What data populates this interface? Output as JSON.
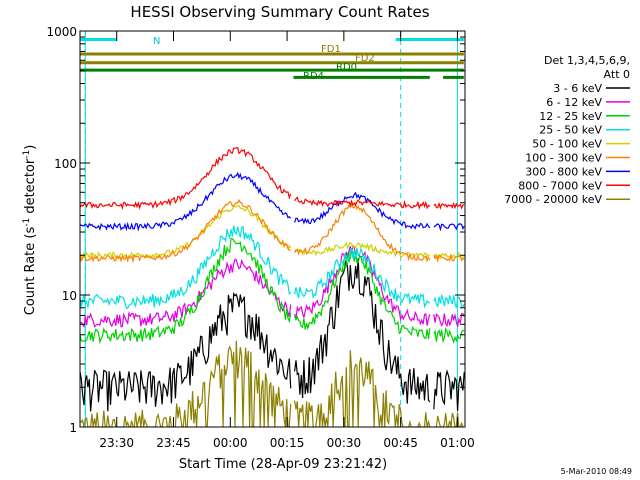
{
  "chart_data": {
    "type": "line",
    "title": "HESSI Observing Summary Count Rates",
    "xlabel": "Start Time (28-Apr-09 23:21:42)",
    "ylabel": "Count Rate (s",
    "ylabel_sup1": "-1",
    "ylabel_mid": " detector",
    "ylabel_sup2": "-1",
    "ylabel_end": ")",
    "y_scale": "log",
    "ylim": [
      1,
      1000
    ],
    "xlim": [
      "23:21:42",
      "01:02:00"
    ],
    "x_ticks": [
      "23:30",
      "23:45",
      "00:00",
      "00:15",
      "00:30",
      "00:45",
      "01:00"
    ],
    "y_ticks": [
      {
        "value": 1,
        "label": "1"
      },
      {
        "value": 10,
        "label": "10"
      },
      {
        "value": 100,
        "label": "100"
      },
      {
        "value": 1000,
        "label": "1000"
      }
    ],
    "legend_header": [
      "Det 1,3,4,5,6,9,",
      "Att 0"
    ],
    "legend_position": "right",
    "footer": "5-Mar-2010 08:49",
    "x_tick_minutes": [
      8.3,
      23.3,
      38.3,
      53.3,
      68.3,
      83.3,
      98.3
    ],
    "night_lines_min": [
      0,
      98.3
    ],
    "saa_lines_min": [
      0,
      83.3
    ],
    "series": [
      {
        "name": "3 - 6 keV",
        "color": "#000000",
        "base": 2.0,
        "peak1": 8.0,
        "peak2": 17.0
      },
      {
        "name": "6 - 12 keV",
        "color": "#e000e0",
        "base": 6.5,
        "peak1": 17.0,
        "peak2": 22.0
      },
      {
        "name": "12 - 25 keV",
        "color": "#00d000",
        "base": 5.0,
        "peak1": 25.0,
        "peak2": 20.0
      },
      {
        "name": "25 - 50 keV",
        "color": "#00e0e0",
        "base": 9.0,
        "peak1": 31.0,
        "peak2": 21.0
      },
      {
        "name": "50 - 100 keV",
        "color": "#d0d000",
        "base": 20.0,
        "peak1": 46.0,
        "peak2": 24.0
      },
      {
        "name": "100 - 300 keV",
        "color": "#ff8000",
        "base": 19.0,
        "peak1": 50.0,
        "peak2": 47.0
      },
      {
        "name": "300 - 800 keV",
        "color": "#0000ff",
        "base": 33.0,
        "peak1": 80.0,
        "peak2": 57.0
      },
      {
        "name": "800 - 7000 keV",
        "color": "#ff0000",
        "base": 48.0,
        "peak1": 125.0,
        "peak2": 50.0
      },
      {
        "name": "7000 - 20000 keV",
        "color": "#8b8000",
        "base": 1.0,
        "peak1": 3.5,
        "peak2": 3.0
      }
    ],
    "flags": [
      {
        "name": "N",
        "color": "#00e0e0",
        "segments": [
          [
            -1.4,
            8.2
          ],
          [
            82.0,
            100.0
          ]
        ],
        "level": 862
      },
      {
        "name": "FD1",
        "color": "#8b8000",
        "segments": [
          [
            -1.4,
            100.0
          ]
        ],
        "level": 670
      },
      {
        "name": "FD2",
        "color": "#8b8000",
        "segments": [
          [
            -1.4,
            100.0
          ]
        ],
        "level": 575
      },
      {
        "name": "RD0",
        "color": "#008000",
        "segments": [
          [
            -1.4,
            100.0
          ]
        ],
        "level": 505
      },
      {
        "name": "RD4",
        "color": "#008000",
        "segments": [
          [
            55.0,
            91.0
          ],
          [
            94.5,
            100.0
          ]
        ],
        "level": 445
      }
    ]
  }
}
